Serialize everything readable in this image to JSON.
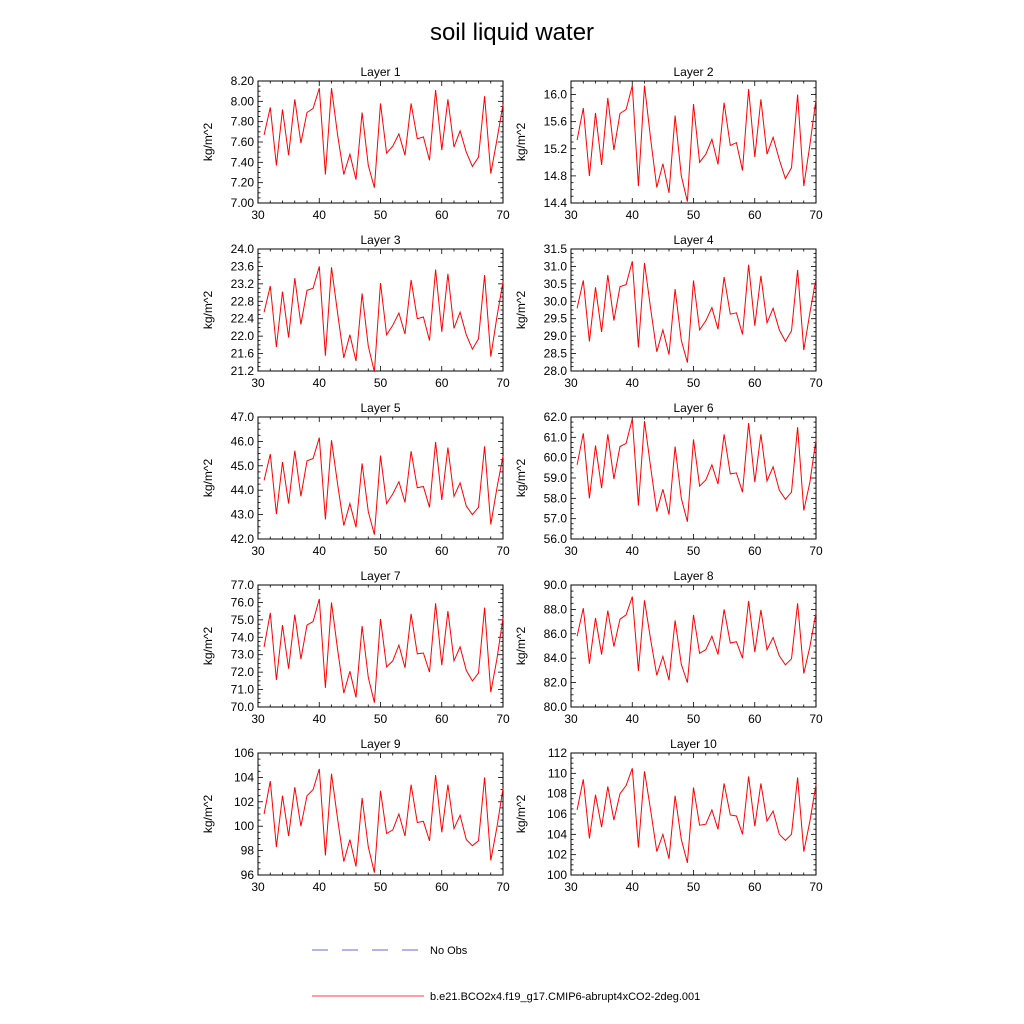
{
  "title": "soil liquid water",
  "colors": {
    "model": "#ff0000",
    "obs": "#3a3acf",
    "axis": "#000000"
  },
  "legend": {
    "obs_label": "No Obs",
    "model_label": "b.e21.BCO2x4.f19_g17.CMIP6-abrupt4xCO2-2deg.001"
  },
  "chart_data": [
    {
      "type": "line",
      "title": "Layer 1",
      "ylabel": "kg/m^2",
      "xlim": [
        30,
        70
      ],
      "ylim": [
        7.0,
        8.2
      ],
      "xticks": [
        30,
        40,
        50,
        60,
        70
      ],
      "yticks": [
        "7.00",
        "7.20",
        "7.40",
        "7.60",
        "7.80",
        "8.00",
        "8.20"
      ],
      "x": [
        31,
        32,
        33,
        34,
        35,
        36,
        37,
        38,
        39,
        40,
        41,
        42,
        43,
        44,
        45,
        46,
        47,
        48,
        49,
        50,
        51,
        52,
        53,
        54,
        55,
        56,
        57,
        58,
        59,
        60,
        61,
        62,
        63,
        64,
        65,
        66,
        67,
        68,
        69,
        70
      ],
      "series": [
        {
          "values": [
            7.67,
            7.94,
            7.37,
            7.92,
            7.47,
            8.02,
            7.59,
            7.89,
            7.93,
            8.13,
            7.28,
            8.13,
            7.67,
            7.28,
            7.48,
            7.23,
            7.89,
            7.37,
            7.15,
            7.98,
            7.49,
            7.56,
            7.68,
            7.47,
            7.98,
            7.63,
            7.65,
            7.42,
            8.11,
            7.52,
            8.02,
            7.55,
            7.71,
            7.5,
            7.36,
            7.45,
            8.05,
            7.29,
            7.62,
            7.97
          ]
        }
      ]
    },
    {
      "type": "line",
      "title": "Layer 2",
      "ylabel": "kg/m^2",
      "xlim": [
        30,
        70
      ],
      "ylim": [
        14.4,
        16.2
      ],
      "xticks": [
        30,
        40,
        50,
        60,
        70
      ],
      "yticks": [
        "14.4",
        "14.8",
        "15.2",
        "15.6",
        "16.0"
      ],
      "x": [
        31,
        32,
        33,
        34,
        35,
        36,
        37,
        38,
        39,
        40,
        41,
        42,
        43,
        44,
        45,
        46,
        47,
        48,
        49,
        50,
        51,
        52,
        53,
        54,
        55,
        56,
        57,
        58,
        59,
        60,
        61,
        62,
        63,
        64,
        65,
        66,
        67,
        68,
        69,
        70
      ],
      "series": [
        {
          "values": [
            15.33,
            15.8,
            14.8,
            15.73,
            14.96,
            15.95,
            15.18,
            15.72,
            15.78,
            16.13,
            14.65,
            16.13,
            15.35,
            14.63,
            14.98,
            14.55,
            15.69,
            14.8,
            14.42,
            15.86,
            15.0,
            15.12,
            15.34,
            14.97,
            15.88,
            15.25,
            15.29,
            14.88,
            16.08,
            15.08,
            15.93,
            15.12,
            15.37,
            15.04,
            14.76,
            14.92,
            16.0,
            14.65,
            15.26,
            15.93
          ]
        }
      ]
    },
    {
      "type": "line",
      "title": "Layer 3",
      "ylabel": "kg/m^2",
      "xlim": [
        30,
        70
      ],
      "ylim": [
        21.2,
        24.0
      ],
      "xticks": [
        30,
        40,
        50,
        60,
        70
      ],
      "yticks": [
        "21.2",
        "21.6",
        "22.0",
        "22.4",
        "22.8",
        "23.2",
        "23.6",
        "24.0"
      ],
      "x": [
        31,
        32,
        33,
        34,
        35,
        36,
        37,
        38,
        39,
        40,
        41,
        42,
        43,
        44,
        45,
        46,
        47,
        48,
        49,
        50,
        51,
        52,
        53,
        54,
        55,
        56,
        57,
        58,
        59,
        60,
        61,
        62,
        63,
        64,
        65,
        66,
        67,
        68,
        69,
        70
      ],
      "series": [
        {
          "values": [
            22.55,
            23.15,
            21.75,
            23.02,
            21.97,
            23.33,
            22.27,
            23.05,
            23.1,
            23.6,
            21.55,
            23.58,
            22.53,
            21.5,
            22.03,
            21.43,
            22.98,
            21.77,
            21.18,
            23.22,
            22.03,
            22.25,
            22.53,
            22.05,
            23.29,
            22.4,
            22.44,
            21.9,
            23.53,
            22.1,
            23.43,
            22.18,
            22.55,
            22.03,
            21.7,
            21.94,
            23.4,
            21.53,
            22.44,
            23.25
          ]
        }
      ]
    },
    {
      "type": "line",
      "title": "Layer 4",
      "ylabel": "kg/m^2",
      "xlim": [
        30,
        70
      ],
      "ylim": [
        28.0,
        31.5
      ],
      "xticks": [
        30,
        40,
        50,
        60,
        70
      ],
      "yticks": [
        "28.0",
        "28.5",
        "29.0",
        "29.5",
        "30.0",
        "30.5",
        "31.0",
        "31.5"
      ],
      "x": [
        31,
        32,
        33,
        34,
        35,
        36,
        37,
        38,
        39,
        40,
        41,
        42,
        43,
        44,
        45,
        46,
        47,
        48,
        49,
        50,
        51,
        52,
        53,
        54,
        55,
        56,
        57,
        58,
        59,
        60,
        61,
        62,
        63,
        64,
        65,
        66,
        67,
        68,
        69,
        70
      ],
      "series": [
        {
          "values": [
            29.8,
            30.6,
            28.85,
            30.4,
            29.12,
            30.75,
            29.45,
            30.42,
            30.48,
            31.15,
            28.68,
            31.1,
            29.8,
            28.55,
            29.18,
            28.47,
            30.35,
            28.88,
            28.24,
            30.6,
            29.18,
            29.44,
            29.82,
            29.2,
            30.7,
            29.63,
            29.67,
            29.05,
            31.05,
            29.3,
            30.73,
            29.38,
            29.8,
            29.18,
            28.85,
            29.15,
            30.9,
            28.6,
            29.67,
            30.65
          ]
        }
      ]
    },
    {
      "type": "line",
      "title": "Layer 5",
      "ylabel": "kg/m^2",
      "xlim": [
        30,
        70
      ],
      "ylim": [
        42.0,
        47.0
      ],
      "xticks": [
        30,
        40,
        50,
        60,
        70
      ],
      "yticks": [
        "42.0",
        "43.0",
        "44.0",
        "45.0",
        "46.0",
        "47.0"
      ],
      "x": [
        31,
        32,
        33,
        34,
        35,
        36,
        37,
        38,
        39,
        40,
        41,
        42,
        43,
        44,
        45,
        46,
        47,
        48,
        49,
        50,
        51,
        52,
        53,
        54,
        55,
        56,
        57,
        58,
        59,
        60,
        61,
        62,
        63,
        64,
        65,
        66,
        67,
        68,
        69,
        70
      ],
      "series": [
        {
          "values": [
            44.4,
            45.48,
            43.02,
            45.15,
            43.45,
            45.62,
            43.75,
            45.2,
            45.3,
            46.15,
            42.8,
            46.05,
            44.25,
            42.55,
            43.45,
            42.48,
            45.1,
            43.12,
            42.18,
            45.42,
            43.45,
            43.85,
            44.35,
            43.5,
            45.6,
            44.1,
            44.15,
            43.3,
            45.98,
            43.6,
            45.75,
            43.75,
            44.3,
            43.35,
            43.0,
            43.3,
            45.8,
            42.6,
            44.08,
            45.4
          ]
        }
      ]
    },
    {
      "type": "line",
      "title": "Layer 6",
      "ylabel": "kg/m^2",
      "xlim": [
        30,
        70
      ],
      "ylim": [
        56.0,
        62.0
      ],
      "xticks": [
        30,
        40,
        50,
        60,
        70
      ],
      "yticks": [
        "56.0",
        "57.0",
        "58.0",
        "59.0",
        "60.0",
        "61.0",
        "62.0"
      ],
      "x": [
        31,
        32,
        33,
        34,
        35,
        36,
        37,
        38,
        39,
        40,
        41,
        42,
        43,
        44,
        45,
        46,
        47,
        48,
        49,
        50,
        51,
        52,
        53,
        54,
        55,
        56,
        57,
        58,
        59,
        60,
        61,
        62,
        63,
        64,
        65,
        66,
        67,
        68,
        69,
        70
      ],
      "series": [
        {
          "values": [
            59.65,
            61.2,
            58.0,
            60.6,
            58.5,
            61.15,
            58.95,
            60.55,
            60.7,
            61.9,
            57.65,
            61.8,
            59.55,
            57.35,
            58.45,
            57.2,
            60.55,
            58.0,
            56.85,
            60.9,
            58.6,
            58.9,
            59.65,
            58.7,
            61.15,
            59.2,
            59.25,
            58.3,
            61.7,
            58.8,
            61.15,
            58.85,
            59.55,
            58.4,
            57.95,
            58.3,
            61.5,
            57.4,
            58.8,
            60.9
          ]
        }
      ]
    },
    {
      "type": "line",
      "title": "Layer 7",
      "ylabel": "kg/m^2",
      "xlim": [
        30,
        70
      ],
      "ylim": [
        70.0,
        77.0
      ],
      "xticks": [
        30,
        40,
        50,
        60,
        70
      ],
      "yticks": [
        "70.0",
        "71.0",
        "72.0",
        "73.0",
        "74.0",
        "75.0",
        "76.0",
        "77.0"
      ],
      "x": [
        31,
        32,
        33,
        34,
        35,
        36,
        37,
        38,
        39,
        40,
        41,
        42,
        43,
        44,
        45,
        46,
        47,
        48,
        49,
        50,
        51,
        52,
        53,
        54,
        55,
        56,
        57,
        58,
        59,
        60,
        61,
        62,
        63,
        64,
        65,
        66,
        67,
        68,
        69,
        70
      ],
      "series": [
        {
          "values": [
            73.45,
            75.4,
            71.55,
            74.7,
            72.2,
            75.3,
            72.75,
            74.7,
            74.9,
            76.2,
            71.1,
            76.0,
            73.3,
            70.8,
            72.05,
            70.55,
            74.65,
            71.7,
            70.25,
            75.05,
            72.3,
            72.65,
            73.55,
            72.25,
            75.35,
            73.05,
            73.1,
            72.0,
            75.95,
            72.4,
            75.5,
            72.65,
            73.45,
            72.1,
            71.5,
            71.95,
            75.7,
            70.85,
            72.75,
            75.1
          ]
        }
      ]
    },
    {
      "type": "line",
      "title": "Layer 8",
      "ylabel": "kg/m^2",
      "xlim": [
        30,
        70
      ],
      "ylim": [
        80.0,
        90.0
      ],
      "xticks": [
        30,
        40,
        50,
        60,
        70
      ],
      "yticks": [
        "80.0",
        "82.0",
        "84.0",
        "86.0",
        "88.0",
        "90.0"
      ],
      "x": [
        31,
        32,
        33,
        34,
        35,
        36,
        37,
        38,
        39,
        40,
        41,
        42,
        43,
        44,
        45,
        46,
        47,
        48,
        49,
        50,
        51,
        52,
        53,
        54,
        55,
        56,
        57,
        58,
        59,
        60,
        61,
        62,
        63,
        64,
        65,
        66,
        67,
        68,
        69,
        70
      ],
      "series": [
        {
          "values": [
            85.8,
            88.1,
            83.55,
            87.3,
            84.3,
            87.9,
            84.95,
            87.2,
            87.55,
            89.05,
            82.95,
            88.75,
            85.55,
            82.6,
            84.15,
            82.2,
            87.1,
            83.5,
            82.0,
            87.55,
            84.4,
            84.7,
            85.8,
            84.3,
            88.0,
            85.25,
            85.35,
            84.0,
            88.7,
            84.5,
            87.95,
            84.7,
            85.7,
            84.2,
            83.45,
            83.95,
            88.5,
            82.75,
            84.95,
            87.75
          ]
        }
      ]
    },
    {
      "type": "line",
      "title": "Layer 9",
      "ylabel": "kg/m^2",
      "xlim": [
        30,
        70
      ],
      "ylim": [
        96,
        106
      ],
      "xticks": [
        30,
        40,
        50,
        60,
        70
      ],
      "yticks": [
        "96",
        "98",
        "100",
        "102",
        "104",
        "106"
      ],
      "x": [
        31,
        32,
        33,
        34,
        35,
        36,
        37,
        38,
        39,
        40,
        41,
        42,
        43,
        44,
        45,
        46,
        47,
        48,
        49,
        50,
        51,
        52,
        53,
        54,
        55,
        56,
        57,
        58,
        59,
        60,
        61,
        62,
        63,
        64,
        65,
        66,
        67,
        68,
        69,
        70
      ],
      "series": [
        {
          "values": [
            101.0,
            103.7,
            98.3,
            102.5,
            99.2,
            103.2,
            100.0,
            102.5,
            103.0,
            104.7,
            97.6,
            104.3,
            100.6,
            97.1,
            98.9,
            96.7,
            102.3,
            98.3,
            96.2,
            102.9,
            99.4,
            99.7,
            101.0,
            99.2,
            103.4,
            100.3,
            100.4,
            98.8,
            104.2,
            99.5,
            103.4,
            99.8,
            100.9,
            98.9,
            98.4,
            98.8,
            104.0,
            97.2,
            99.9,
            103.1
          ]
        }
      ]
    },
    {
      "type": "line",
      "title": "Layer 10",
      "ylabel": "kg/m^2",
      "xlim": [
        30,
        70
      ],
      "ylim": [
        100,
        112
      ],
      "xticks": [
        30,
        40,
        50,
        60,
        70
      ],
      "yticks": [
        "100",
        "102",
        "104",
        "106",
        "108",
        "110",
        "112"
      ],
      "x": [
        31,
        32,
        33,
        34,
        35,
        36,
        37,
        38,
        39,
        40,
        41,
        42,
        43,
        44,
        45,
        46,
        47,
        48,
        49,
        50,
        51,
        52,
        53,
        54,
        55,
        56,
        57,
        58,
        59,
        60,
        61,
        62,
        63,
        64,
        65,
        66,
        67,
        68,
        69,
        70
      ],
      "series": [
        {
          "values": [
            106.4,
            109.4,
            103.6,
            107.9,
            104.7,
            108.7,
            105.4,
            108.0,
            108.8,
            110.5,
            102.7,
            110.2,
            106.4,
            102.3,
            104.0,
            101.6,
            107.8,
            103.5,
            101.2,
            108.6,
            104.9,
            105.0,
            106.4,
            104.5,
            109.0,
            105.9,
            105.8,
            104.0,
            109.7,
            104.8,
            109.0,
            105.3,
            106.3,
            104.0,
            103.4,
            104.0,
            109.6,
            102.3,
            105.3,
            108.9
          ]
        }
      ]
    }
  ]
}
